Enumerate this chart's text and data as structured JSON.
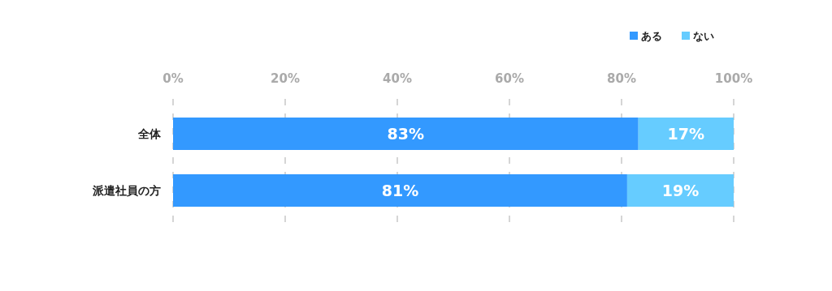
{
  "chart_data": {
    "type": "bar",
    "orientation": "horizontal",
    "stacked": true,
    "categories": [
      "全体",
      "派遣社員の方"
    ],
    "series": [
      {
        "name": "ある",
        "color": "#3399ff",
        "values": [
          83,
          81
        ],
        "value_labels": [
          "83%",
          "81%"
        ]
      },
      {
        "name": "ない",
        "color": "#66ccff",
        "values": [
          17,
          19
        ],
        "value_labels": [
          "17%",
          "19%"
        ]
      }
    ],
    "xlim": [
      0,
      100
    ],
    "xticks": [
      {
        "value": 0,
        "label": "0%"
      },
      {
        "value": 20,
        "label": "20%"
      },
      {
        "value": 40,
        "label": "40%"
      },
      {
        "value": 60,
        "label": "60%"
      },
      {
        "value": 80,
        "label": "80%"
      },
      {
        "value": 100,
        "label": "100%"
      }
    ],
    "grid": "x",
    "legend": "top right"
  }
}
